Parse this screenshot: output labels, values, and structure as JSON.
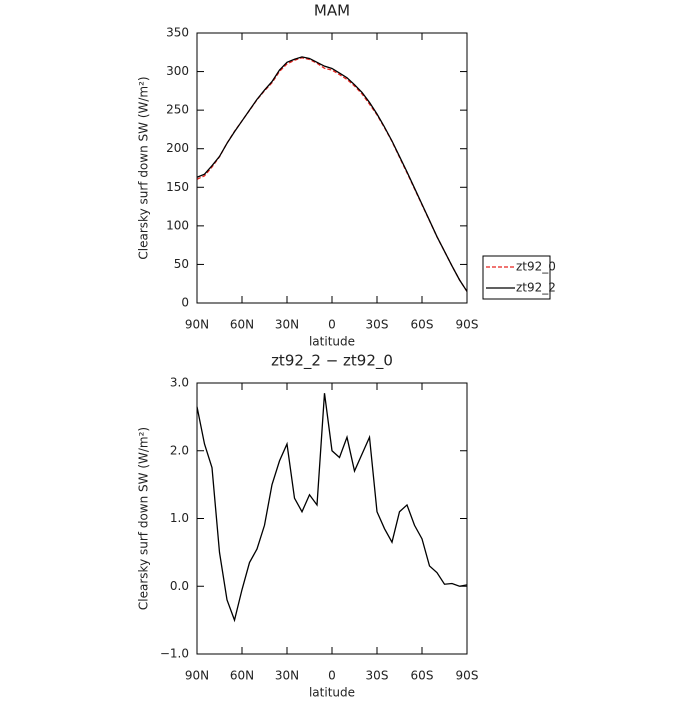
{
  "chart_data": [
    {
      "type": "line",
      "title": "MAM",
      "xlabel": "latitude",
      "ylabel": "Clearsky surf down SW (W/m²)",
      "x": [
        90,
        85,
        80,
        75,
        70,
        65,
        60,
        55,
        50,
        45,
        40,
        35,
        30,
        25,
        20,
        15,
        10,
        5,
        0,
        -5,
        -10,
        -15,
        -20,
        -25,
        -30,
        -35,
        -40,
        -45,
        -50,
        -55,
        -60,
        -65,
        -70,
        -75,
        -80,
        -85,
        -90
      ],
      "series": [
        {
          "name": "zt92_0",
          "color": "#e8231e",
          "linestyle": "dashed",
          "values": [
            160.4,
            164.9,
            176.3,
            189.5,
            207.2,
            222.5,
            236.1,
            249.7,
            263.5,
            275.1,
            285.5,
            300.2,
            309.9,
            314.7,
            317.9,
            315.7,
            310.8,
            304.2,
            302,
            296.1,
            289.8,
            281.3,
            271.1,
            257.8,
            243.9,
            227.2,
            209.4,
            188.9,
            168.8,
            148.1,
            127.3,
            106.7,
            85.8,
            67,
            48,
            30,
            15
          ]
        },
        {
          "name": "zt92_2",
          "color": "#000000",
          "linestyle": "solid",
          "values": [
            163,
            167,
            178,
            190,
            207,
            222,
            236,
            250,
            264,
            276,
            287,
            302,
            312,
            316,
            319,
            317,
            312,
            307,
            304,
            298,
            292,
            283,
            273,
            260,
            245,
            228,
            210,
            190,
            170,
            149,
            128,
            107,
            86,
            67,
            48,
            30,
            15
          ]
        }
      ],
      "xlim": [
        90,
        -90
      ],
      "xticks": [
        {
          "value": 90,
          "label": "90N"
        },
        {
          "value": 60,
          "label": "60N"
        },
        {
          "value": 30,
          "label": "30N"
        },
        0,
        {
          "value": -30,
          "label": "30S"
        },
        {
          "value": -60,
          "label": "60S"
        },
        {
          "value": -90,
          "label": "90S"
        }
      ],
      "ylim": [
        0,
        350
      ],
      "yticks": [
        0,
        50,
        100,
        150,
        200,
        250,
        300,
        350
      ],
      "legend": "right"
    },
    {
      "type": "line",
      "title": "zt92_2 − zt92_0",
      "xlabel": "latitude",
      "ylabel": "Clearsky surf down SW (W/m²)",
      "x": [
        90,
        85,
        80,
        75,
        70,
        65,
        60,
        55,
        50,
        45,
        40,
        35,
        30,
        25,
        20,
        15,
        10,
        5,
        0,
        -5,
        -10,
        -15,
        -20,
        -25,
        -30,
        -35,
        -40,
        -45,
        -50,
        -55,
        -60,
        -65,
        -70,
        -75,
        -80,
        -85,
        -90
      ],
      "series": [
        {
          "color": "#000000",
          "linestyle": "solid",
          "values": [
            2.65,
            2.1,
            1.75,
            0.5,
            -0.2,
            -0.5,
            -0.05,
            0.35,
            0.55,
            0.9,
            1.5,
            1.85,
            2.1,
            1.3,
            1.1,
            1.35,
            1.2,
            2.85,
            2.0,
            1.9,
            2.2,
            1.7,
            1.95,
            2.2,
            1.1,
            0.85,
            0.65,
            1.1,
            1.2,
            0.9,
            0.7,
            0.3,
            0.2,
            0.03,
            0.04,
            0.0,
            0.02
          ]
        }
      ],
      "xlim": [
        90,
        -90
      ],
      "xticks": [
        {
          "value": 90,
          "label": "90N"
        },
        {
          "value": 60,
          "label": "60N"
        },
        {
          "value": 30,
          "label": "30N"
        },
        0,
        {
          "value": -30,
          "label": "30S"
        },
        {
          "value": -60,
          "label": "60S"
        },
        {
          "value": -90,
          "label": "90S"
        }
      ],
      "ylim": [
        -1,
        3
      ],
      "yticks": [
        {
          "value": -1,
          "label": "−1.0"
        },
        {
          "value": 0,
          "label": "0.0"
        },
        {
          "value": 1,
          "label": "1.0"
        },
        {
          "value": 2,
          "label": "2.0"
        },
        {
          "value": 3,
          "label": "3.0"
        }
      ]
    }
  ]
}
